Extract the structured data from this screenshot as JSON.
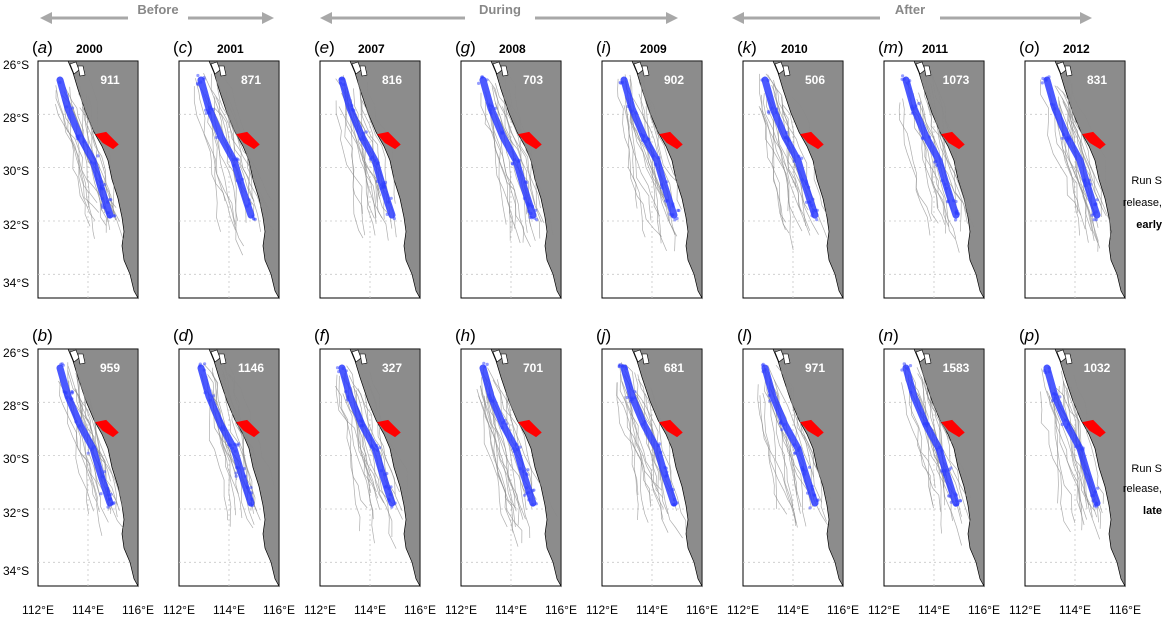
{
  "periods": [
    {
      "label": "Before"
    },
    {
      "label": "During"
    },
    {
      "label": "After"
    }
  ],
  "panels": [
    {
      "letter": "a",
      "year": "2000",
      "count": "911",
      "row": 0,
      "col": 0
    },
    {
      "letter": "c",
      "year": "2001",
      "count": "871",
      "row": 0,
      "col": 1
    },
    {
      "letter": "e",
      "year": "2007",
      "count": "816",
      "row": 0,
      "col": 2
    },
    {
      "letter": "g",
      "year": "2008",
      "count": "703",
      "row": 0,
      "col": 3
    },
    {
      "letter": "i",
      "year": "2009",
      "count": "902",
      "row": 0,
      "col": 4
    },
    {
      "letter": "k",
      "year": "2010",
      "count": "506",
      "row": 0,
      "col": 5
    },
    {
      "letter": "m",
      "year": "2011",
      "count": "1073",
      "row": 0,
      "col": 6
    },
    {
      "letter": "o",
      "year": "2012",
      "count": "831",
      "row": 0,
      "col": 7
    },
    {
      "letter": "b",
      "year": "",
      "count": "959",
      "row": 1,
      "col": 0
    },
    {
      "letter": "d",
      "year": "",
      "count": "1146",
      "row": 1,
      "col": 1
    },
    {
      "letter": "f",
      "year": "",
      "count": "327",
      "row": 1,
      "col": 2
    },
    {
      "letter": "h",
      "year": "",
      "count": "701",
      "row": 1,
      "col": 3
    },
    {
      "letter": "j",
      "year": "",
      "count": "681",
      "row": 1,
      "col": 4
    },
    {
      "letter": "l",
      "year": "",
      "count": "971",
      "row": 1,
      "col": 5
    },
    {
      "letter": "n",
      "year": "",
      "count": "1583",
      "row": 1,
      "col": 6
    },
    {
      "letter": "p",
      "year": "",
      "count": "1032",
      "row": 1,
      "col": 7
    }
  ],
  "lat_ticks": [
    "26°S",
    "28°S",
    "30°S",
    "32°S",
    "34°S"
  ],
  "lon_ticks": [
    "112°E",
    "114°E",
    "116°E"
  ],
  "row_labels": [
    {
      "line1": "Run S",
      "line2": "release,",
      "line3": "early"
    },
    {
      "line1": "Run S",
      "line2": "release,",
      "line3": "late"
    }
  ],
  "colors": {
    "land": "#8c8c8c",
    "tracks": "#8a8a8a",
    "particles": "#2b3cff",
    "release_zone": "#ff0000",
    "arrows": "#a8a8a8",
    "grid": "#c8c8c8"
  }
}
